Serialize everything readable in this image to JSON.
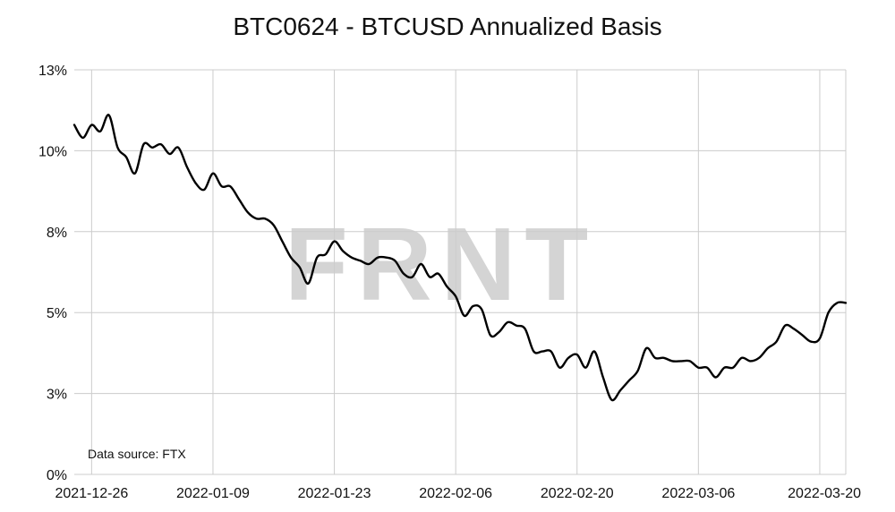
{
  "chart_data": {
    "type": "line",
    "title": "BTC0624 - BTCUSD Annualized Basis",
    "source": "Data source: FTX",
    "watermark": "FRNT",
    "xlabel": "",
    "ylabel": "",
    "x_start": "2021-12-24",
    "x_end": "2022-03-23",
    "x_ticks": [
      "2021-12-26",
      "2022-01-09",
      "2022-01-23",
      "2022-02-06",
      "2022-02-20",
      "2022-03-06",
      "2022-03-20"
    ],
    "ylim": [
      0,
      12.5
    ],
    "y_ticks": [
      0,
      2.5,
      5,
      7.5,
      10,
      12.5
    ],
    "y_tick_labels": [
      "0%",
      "3%",
      "5%",
      "8%",
      "10%",
      "13%"
    ],
    "grid": true,
    "colors": {
      "line": "#000000",
      "grid": "#cccccc",
      "watermark": "#9a9a9a"
    },
    "series": [
      {
        "x": [
          "2021-12-24",
          "2021-12-25",
          "2021-12-26",
          "2021-12-27",
          "2021-12-28",
          "2021-12-29",
          "2021-12-30",
          "2021-12-31",
          "2022-01-01",
          "2022-01-02",
          "2022-01-03",
          "2022-01-04",
          "2022-01-05",
          "2022-01-06",
          "2022-01-07",
          "2022-01-08",
          "2022-01-09",
          "2022-01-10",
          "2022-01-11",
          "2022-01-12",
          "2022-01-13",
          "2022-01-14",
          "2022-01-15",
          "2022-01-16",
          "2022-01-17",
          "2022-01-18",
          "2022-01-19",
          "2022-01-20",
          "2022-01-21",
          "2022-01-22",
          "2022-01-23",
          "2022-01-24",
          "2022-01-25",
          "2022-01-26",
          "2022-01-27",
          "2022-01-28",
          "2022-01-29",
          "2022-01-30",
          "2022-01-31",
          "2022-02-01",
          "2022-02-02",
          "2022-02-03",
          "2022-02-04",
          "2022-02-05",
          "2022-02-06",
          "2022-02-07",
          "2022-02-08",
          "2022-02-09",
          "2022-02-10",
          "2022-02-11",
          "2022-02-12",
          "2022-02-13",
          "2022-02-14",
          "2022-02-15",
          "2022-02-16",
          "2022-02-17",
          "2022-02-18",
          "2022-02-19",
          "2022-02-20",
          "2022-02-21",
          "2022-02-22",
          "2022-02-23",
          "2022-02-24",
          "2022-02-25",
          "2022-02-26",
          "2022-02-27",
          "2022-02-28",
          "2022-03-01",
          "2022-03-02",
          "2022-03-03",
          "2022-03-04",
          "2022-03-05",
          "2022-03-06",
          "2022-03-07",
          "2022-03-08",
          "2022-03-09",
          "2022-03-10",
          "2022-03-11",
          "2022-03-12",
          "2022-03-13",
          "2022-03-14",
          "2022-03-15",
          "2022-03-16",
          "2022-03-17",
          "2022-03-18",
          "2022-03-19",
          "2022-03-20",
          "2022-03-21",
          "2022-03-22",
          "2022-03-23"
        ],
        "values": [
          10.8,
          10.4,
          10.8,
          10.6,
          11.1,
          10.1,
          9.8,
          9.3,
          10.2,
          10.1,
          10.2,
          9.9,
          10.1,
          9.5,
          9.0,
          8.8,
          9.3,
          8.9,
          8.9,
          8.5,
          8.1,
          7.9,
          7.9,
          7.7,
          7.2,
          6.7,
          6.4,
          5.9,
          6.7,
          6.8,
          7.2,
          6.9,
          6.7,
          6.6,
          6.5,
          6.7,
          6.7,
          6.6,
          6.2,
          6.1,
          6.5,
          6.1,
          6.2,
          5.8,
          5.5,
          4.9,
          5.2,
          5.1,
          4.3,
          4.4,
          4.7,
          4.6,
          4.5,
          3.8,
          3.8,
          3.8,
          3.3,
          3.6,
          3.7,
          3.3,
          3.8,
          3.0,
          2.3,
          2.6,
          2.9,
          3.2,
          3.9,
          3.6,
          3.6,
          3.5,
          3.5,
          3.5,
          3.3,
          3.3,
          3.0,
          3.3,
          3.3,
          3.6,
          3.5,
          3.6,
          3.9,
          4.1,
          4.6,
          4.5,
          4.3,
          4.1,
          4.2,
          5.0,
          5.3,
          5.3
        ]
      }
    ]
  }
}
